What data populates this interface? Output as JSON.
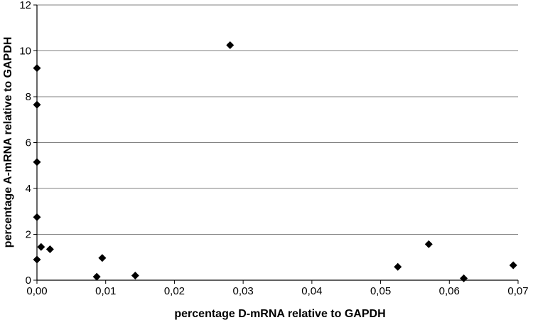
{
  "chart_data": {
    "type": "scatter",
    "title": "",
    "xlabel": "percentage D-mRNA relative to GAPDH",
    "ylabel": "percentage A-mRNA relative to GAPDH",
    "xlim": [
      0,
      0.07
    ],
    "ylim": [
      0,
      12
    ],
    "x_ticks": [
      0,
      0.01,
      0.02,
      0.03,
      0.04,
      0.05,
      0.06,
      0.07
    ],
    "x_tick_labels": [
      "0,00",
      "0,01",
      "0,02",
      "0,03",
      "0,04",
      "0,05",
      "0,06",
      "0,07"
    ],
    "y_ticks": [
      0,
      2,
      4,
      6,
      8,
      10,
      12
    ],
    "y_tick_labels": [
      "0",
      "2",
      "4",
      "6",
      "8",
      "10",
      "12"
    ],
    "grid": "horizontal",
    "legend": "none",
    "marker": "diamond",
    "colors": {
      "marker": "#000000",
      "grid": "#808080",
      "axis": "#000000"
    },
    "series": [
      {
        "points": [
          {
            "x": 0.0,
            "y": 9.25
          },
          {
            "x": 0.0,
            "y": 7.65
          },
          {
            "x": 0.0,
            "y": 5.15
          },
          {
            "x": 0.0,
            "y": 2.75
          },
          {
            "x": 0.0,
            "y": 0.9
          },
          {
            "x": 0.0006,
            "y": 1.45
          },
          {
            "x": 0.0019,
            "y": 1.35
          },
          {
            "x": 0.0087,
            "y": 0.15
          },
          {
            "x": 0.0095,
            "y": 0.97
          },
          {
            "x": 0.0143,
            "y": 0.2
          },
          {
            "x": 0.0281,
            "y": 10.25
          },
          {
            "x": 0.0525,
            "y": 0.58
          },
          {
            "x": 0.057,
            "y": 1.57
          },
          {
            "x": 0.0621,
            "y": 0.08
          },
          {
            "x": 0.0693,
            "y": 0.65
          }
        ]
      }
    ]
  }
}
